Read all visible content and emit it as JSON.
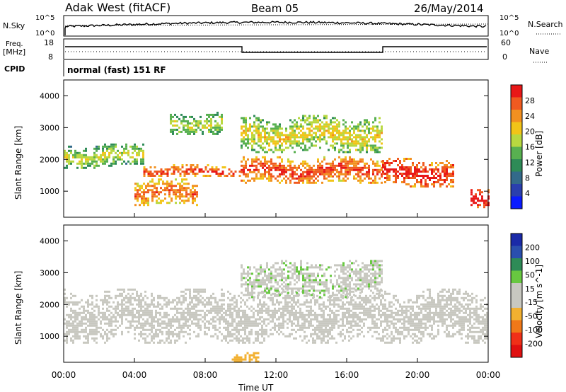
{
  "header": {
    "title": "Adak West (fitACF)",
    "beam": "Beam 05",
    "date": "26/May/2014"
  },
  "strip": {
    "nsky_label": "N.Sky",
    "nsky_top": "10^5",
    "nsky_bottom": "10^0",
    "nsearch_label": "N.Search",
    "freq_label_1": "Freq.",
    "freq_label_2": "[MHz]",
    "freq_ticks": [
      "18",
      "8"
    ],
    "nave_ticks": [
      "60",
      "0"
    ],
    "nave_label": "Nave",
    "cpid_label": "CPID",
    "cpid_text": "normal (fast) 151 RF"
  },
  "colors": {
    "power": [
      "#0a1bff",
      "#2a3fae",
      "#336a8a",
      "#2e8b57",
      "#58b050",
      "#b8d840",
      "#f2c418",
      "#f29020",
      "#f05a20",
      "#e81818"
    ],
    "velocity": [
      "#e01010",
      "#f03018",
      "#f07818",
      "#f2b030",
      "#c8c8c0",
      "#c8c8c0",
      "#68c840",
      "#2e8b57",
      "#2a4fae",
      "#1a2aa8"
    ]
  },
  "chart_data": [
    {
      "type": "heatmap",
      "title": "Power",
      "ylabel": "Slant Range [km]",
      "ylim": [
        180,
        4500
      ],
      "yticks": [
        1000,
        2000,
        3000,
        4000
      ],
      "xlim": [
        0,
        24
      ],
      "colorbar": {
        "label": "Power [dB]",
        "range": [
          0,
          32
        ],
        "ticks": [
          "4",
          "8",
          "12",
          "16",
          "20",
          "24",
          "28"
        ]
      },
      "features": [
        {
          "from": 0,
          "to": 4.5,
          "range_km": [
            1750,
            2500
          ],
          "level_db": 14
        },
        {
          "from": 4.5,
          "to": 10,
          "range_km": [
            1450,
            1850
          ],
          "level_db": 24
        },
        {
          "from": 4,
          "to": 7.5,
          "range_km": [
            550,
            1400
          ],
          "level_db": 22
        },
        {
          "from": 10,
          "to": 18,
          "range_km": [
            1250,
            2100
          ],
          "level_db": 24
        },
        {
          "from": 18,
          "to": 22,
          "range_km": [
            1150,
            2050
          ],
          "level_db": 26
        },
        {
          "from": 10,
          "to": 18,
          "range_km": [
            2200,
            3400
          ],
          "level_db": 16
        },
        {
          "from": 6,
          "to": 9,
          "range_km": [
            2800,
            3500
          ],
          "level_db": 14
        },
        {
          "from": 23,
          "to": 24,
          "range_km": [
            500,
            1200
          ],
          "level_db": 28
        }
      ]
    },
    {
      "type": "heatmap",
      "title": "Velocity",
      "ylabel": "Slant Range [km]",
      "ylim": [
        180,
        4500
      ],
      "yticks": [
        1000,
        2000,
        3000,
        4000
      ],
      "xlim": [
        0,
        24
      ],
      "colorbar": {
        "label": "Velocity [m s^-1]",
        "range": [
          -250,
          250
        ],
        "ticks": [
          "-200",
          "-100",
          "-50",
          "-15",
          "15",
          "50",
          "100",
          "200"
        ]
      },
      "features": [
        {
          "from": 0,
          "to": 24,
          "range_km": [
            800,
            2500
          ],
          "velocity": 0
        },
        {
          "from": 10,
          "to": 18,
          "range_km": [
            2200,
            3400
          ],
          "velocity": 40
        },
        {
          "from": 9.5,
          "to": 11,
          "range_km": [
            180,
            500
          ],
          "velocity": -80
        }
      ]
    }
  ],
  "time_axis": {
    "label": "Time UT",
    "ticks": [
      "00:00",
      "04:00",
      "08:00",
      "12:00",
      "16:00",
      "20:00",
      "00:00"
    ]
  }
}
